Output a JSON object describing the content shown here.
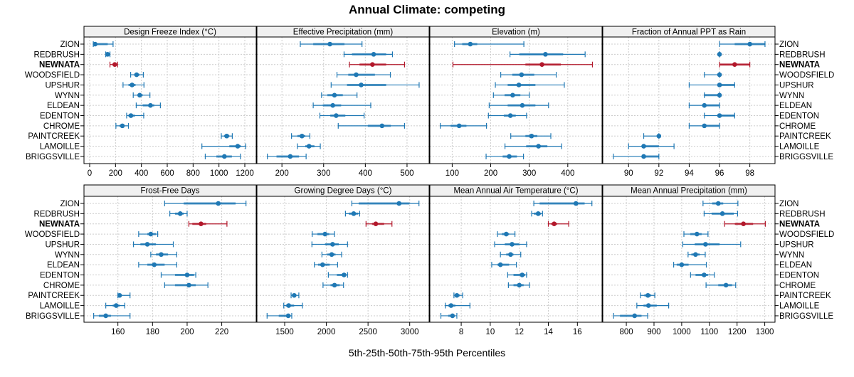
{
  "chart_data": {
    "type": "dot-interval",
    "title": "Annual Climate: competing",
    "xlabel": "5th-25th-50th-75th-95th Percentiles",
    "percentiles": [
      "5th",
      "25th",
      "50th",
      "75th",
      "95th"
    ],
    "highlight": "NEWNATA",
    "colors": {
      "series": "#1f78b4",
      "highlight": "#b2182b"
    },
    "categories": [
      "ZION",
      "REDBRUSH",
      "NEWNATA",
      "WOODSFIELD",
      "UPSHUR",
      "WYNN",
      "ELDEAN",
      "EDENTON",
      "CHROME",
      "PAINTCREEK",
      "LAMOILLE",
      "BRIGGSVILLE"
    ],
    "panels": [
      {
        "title": "Design Freeze Index (°C)",
        "xlim": [
          -44,
          1288
        ],
        "ticks": [
          0,
          200,
          400,
          600,
          800,
          1000,
          1200
        ],
        "values": [
          [
            28,
            35,
            42,
            140,
            181
          ],
          [
            124,
            130,
            138,
            150,
            157
          ],
          [
            157,
            180,
            194,
            205,
            216
          ],
          [
            317,
            345,
            363,
            385,
            415
          ],
          [
            258,
            300,
            328,
            355,
            420
          ],
          [
            337,
            370,
            387,
            410,
            466
          ],
          [
            360,
            410,
            470,
            500,
            547
          ],
          [
            286,
            300,
            319,
            350,
            418
          ],
          [
            203,
            230,
            253,
            270,
            300
          ],
          [
            1018,
            1040,
            1060,
            1080,
            1103
          ],
          [
            868,
            1080,
            1145,
            1170,
            1207
          ],
          [
            894,
            980,
            1042,
            1100,
            1166
          ]
        ]
      },
      {
        "title": "Effective Precipitation (mm)",
        "xlim": [
          140,
          553
        ],
        "ticks": [
          200,
          300,
          400,
          500
        ],
        "values": [
          [
            244,
            275,
            315,
            350,
            392
          ],
          [
            349,
            368,
            420,
            450,
            465
          ],
          [
            362,
            386,
            417,
            450,
            494
          ],
          [
            332,
            359,
            378,
            423,
            460
          ],
          [
            318,
            356,
            390,
            450,
            529
          ],
          [
            295,
            309,
            326,
            346,
            380
          ],
          [
            275,
            298,
            322,
            342,
            413
          ],
          [
            291,
            316,
            330,
            352,
            397
          ],
          [
            335,
            406,
            440,
            461,
            494
          ],
          [
            223,
            237,
            248,
            256,
            267
          ],
          [
            237,
            256,
            265,
            278,
            292
          ],
          [
            165,
            187,
            220,
            241,
            258
          ]
        ]
      },
      {
        "title": "Elevation (m)",
        "xlim": [
          42,
          489
        ],
        "ticks": [
          100,
          200,
          300,
          400
        ],
        "values": [
          [
            106,
            126,
            147,
            165,
            286
          ],
          [
            250,
            274,
            342,
            388,
            445
          ],
          [
            102,
            290,
            333,
            382,
            464
          ],
          [
            226,
            256,
            280,
            313,
            370
          ],
          [
            212,
            244,
            273,
            316,
            391
          ],
          [
            207,
            236,
            257,
            277,
            300
          ],
          [
            196,
            244,
            282,
            316,
            350
          ],
          [
            194,
            234,
            251,
            265,
            293
          ],
          [
            69,
            96,
            118,
            137,
            189
          ],
          [
            252,
            290,
            306,
            321,
            356
          ],
          [
            237,
            292,
            324,
            347,
            384
          ],
          [
            188,
            231,
            248,
            268,
            285
          ]
        ]
      },
      {
        "title": "Fraction of Annual PPT as Rain",
        "xlim": [
          88.3,
          99.66
        ],
        "ticks": [
          90,
          92,
          94,
          96,
          98
        ],
        "values": [
          [
            96,
            97,
            98,
            99,
            99
          ],
          [
            96,
            96,
            96,
            96,
            96
          ],
          [
            96,
            96,
            97,
            98,
            98
          ],
          [
            95,
            96,
            96,
            96,
            96
          ],
          [
            94,
            96,
            96,
            97,
            97
          ],
          [
            95,
            95,
            96,
            96,
            96
          ],
          [
            94,
            95,
            95,
            96,
            96
          ],
          [
            95,
            96,
            96,
            97,
            97
          ],
          [
            94,
            95,
            95,
            96,
            96
          ],
          [
            91,
            92,
            92,
            92,
            92
          ],
          [
            90,
            91,
            91,
            92,
            93
          ],
          [
            89,
            91,
            91,
            92,
            92
          ]
        ]
      },
      {
        "title": "Frost-Free Days",
        "xlim": [
          140.4,
          239.9
        ],
        "ticks": [
          160,
          180,
          200,
          220
        ],
        "values": [
          [
            187,
            198,
            218,
            228,
            234
          ],
          [
            190,
            193,
            196,
            198,
            200
          ],
          [
            201,
            203,
            208,
            211,
            223
          ],
          [
            172,
            177,
            179,
            182,
            183
          ],
          [
            169,
            173,
            177,
            182,
            192
          ],
          [
            179,
            182,
            185,
            189,
            194
          ],
          [
            172,
            177,
            181,
            187,
            194
          ],
          [
            185,
            193,
            200,
            204,
            205
          ],
          [
            187,
            193,
            201,
            205,
            212
          ],
          [
            160,
            160,
            161,
            162,
            167
          ],
          [
            153,
            157,
            159,
            161,
            164
          ],
          [
            146,
            149,
            153,
            156,
            167
          ]
        ]
      },
      {
        "title": "Growing Degree Days (°C)",
        "xlim": [
          1167,
          3233
        ],
        "ticks": [
          1500,
          2000,
          2500,
          3000
        ],
        "values": [
          [
            2306,
            2388,
            2872,
            2997,
            3111
          ],
          [
            2229,
            2269,
            2328,
            2382,
            2400
          ],
          [
            2476,
            2548,
            2593,
            2693,
            2787
          ],
          [
            1830,
            1893,
            1984,
            2035,
            2098
          ],
          [
            1827,
            1984,
            2075,
            2149,
            2254
          ],
          [
            1947,
            2010,
            2064,
            2110,
            2183
          ],
          [
            1856,
            1900,
            1955,
            2040,
            2135
          ],
          [
            2024,
            2126,
            2212,
            2240,
            2254
          ],
          [
            1960,
            2050,
            2098,
            2160,
            2206
          ],
          [
            1577,
            1590,
            1614,
            1640,
            1670
          ],
          [
            1489,
            1514,
            1548,
            1614,
            1713
          ],
          [
            1289,
            1429,
            1543,
            1571,
            1585
          ]
        ]
      },
      {
        "title": "Mean Annual Air Temperature (°C)",
        "xlim": [
          5.84,
          17.7
        ],
        "ticks": [
          8,
          10,
          12,
          14,
          16
        ],
        "values": [
          [
            13.0,
            13.4,
            15.9,
            16.5,
            17.0
          ],
          [
            12.85,
            13.0,
            13.3,
            13.5,
            13.6
          ],
          [
            14.0,
            14.2,
            14.4,
            14.6,
            15.4
          ],
          [
            10.5,
            10.8,
            11.1,
            11.3,
            11.7
          ],
          [
            10.3,
            11.0,
            11.5,
            12.0,
            12.5
          ],
          [
            10.7,
            11.1,
            11.4,
            11.6,
            12.1
          ],
          [
            10.1,
            10.5,
            10.7,
            11.3,
            11.8
          ],
          [
            11.2,
            11.6,
            12.2,
            12.4,
            12.5
          ],
          [
            11.25,
            11.6,
            12.0,
            12.3,
            12.7
          ],
          [
            7.5,
            7.6,
            7.7,
            7.9,
            8.1
          ],
          [
            6.9,
            7.1,
            7.3,
            7.6,
            8.6
          ],
          [
            6.6,
            7.1,
            7.4,
            7.5,
            7.7
          ]
        ]
      },
      {
        "title": "Mean Annual Precipitation (mm)",
        "xlim": [
          715,
          1337
        ],
        "ticks": [
          800,
          900,
          1000,
          1100,
          1200,
          1300
        ],
        "values": [
          [
            1077,
            1110,
            1132,
            1150,
            1203
          ],
          [
            1081,
            1108,
            1147,
            1188,
            1202
          ],
          [
            1155,
            1192,
            1223,
            1258,
            1302
          ],
          [
            1008,
            1031,
            1055,
            1072,
            1095
          ],
          [
            1004,
            1047,
            1086,
            1137,
            1213
          ],
          [
            1023,
            1035,
            1050,
            1065,
            1085
          ],
          [
            971,
            982,
            1000,
            1025,
            1089
          ],
          [
            1032,
            1050,
            1081,
            1095,
            1118
          ],
          [
            1088,
            1132,
            1160,
            1182,
            1195
          ],
          [
            851,
            865,
            878,
            890,
            903
          ],
          [
            838,
            862,
            880,
            910,
            953
          ],
          [
            754,
            777,
            830,
            855,
            877
          ]
        ]
      }
    ]
  }
}
